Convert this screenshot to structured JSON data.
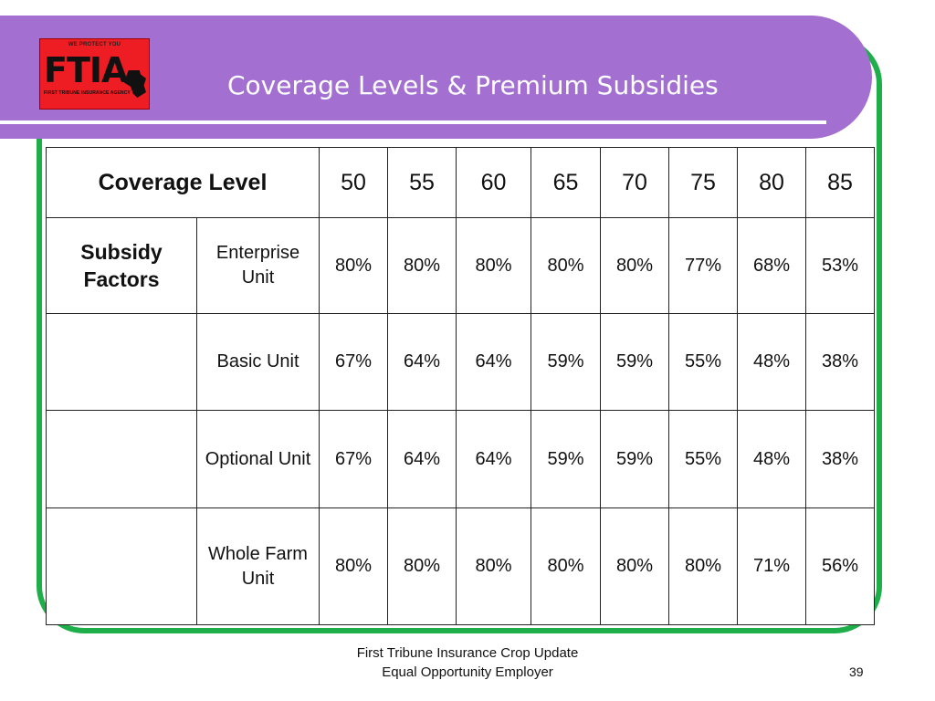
{
  "slide": {
    "title": "Coverage Levels & Premium Subsidies",
    "page_number": "39",
    "footer_line1": "First Tribune Insurance Crop Update",
    "footer_line2": "Equal Opportunity Employer"
  },
  "logo": {
    "top_text": "WE PROTECT YOU",
    "main_text": "FTIA",
    "bottom_text": "FIRST TRIBUNE INSURANCE AGENCY"
  },
  "table": {
    "header_label": "Coverage Level",
    "side_label_line1": "Subsidy",
    "side_label_line2": "Factors",
    "levels": [
      "50",
      "55",
      "60",
      "65",
      "70",
      "75",
      "80",
      "85"
    ],
    "rows": [
      {
        "label_line1": "Enterprise",
        "label_line2": "Unit",
        "values": [
          "80%",
          "80%",
          "80%",
          "80%",
          "80%",
          "77%",
          "68%",
          "53%"
        ]
      },
      {
        "label_line1": "Basic Unit",
        "label_line2": "",
        "values": [
          "67%",
          "64%",
          "64%",
          "59%",
          "59%",
          "55%",
          "48%",
          "38%"
        ]
      },
      {
        "label_line1": "Optional Unit",
        "label_line2": "",
        "values": [
          "67%",
          "64%",
          "64%",
          "59%",
          "59%",
          "55%",
          "48%",
          "38%"
        ]
      },
      {
        "label_line1": "Whole Farm",
        "label_line2": "Unit",
        "values": [
          "80%",
          "80%",
          "80%",
          "80%",
          "80%",
          "80%",
          "71%",
          "56%"
        ]
      }
    ]
  },
  "colors": {
    "header_band": "#a36fd0",
    "frame": "#1eae4a",
    "logo_bg": "#ee1d23"
  }
}
